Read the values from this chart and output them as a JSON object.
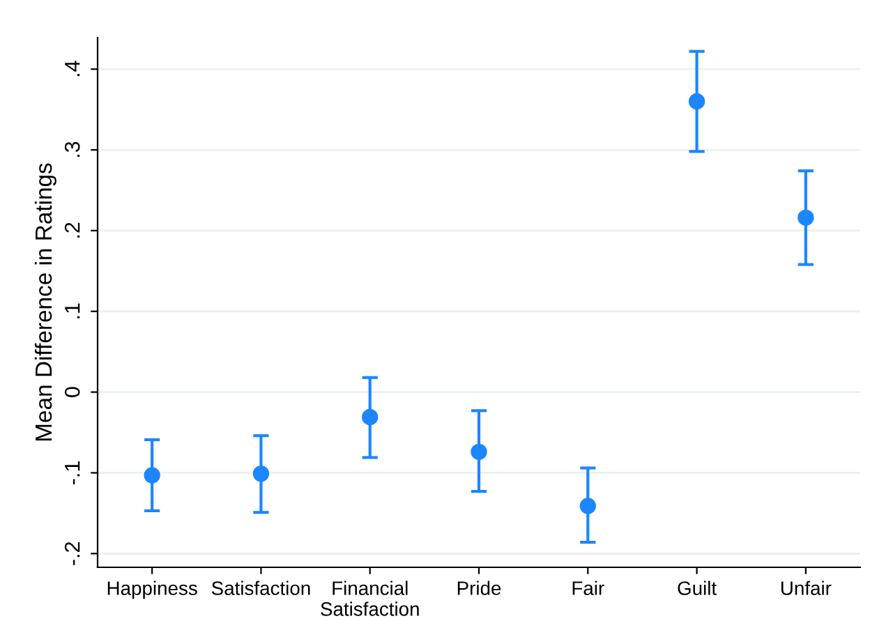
{
  "chart_data": {
    "type": "scatter",
    "ylabel": "Mean Difference in Ratings",
    "categories": [
      "Happiness",
      "Satisfaction",
      "Financial\nSatisfaction",
      "Pride",
      "Fair",
      "Guilt",
      "Unfair"
    ],
    "series": [
      {
        "color": "#1c86ff",
        "values": [
          -0.103,
          -0.101,
          -0.031,
          -0.074,
          -0.141,
          0.36,
          0.216
        ],
        "errors": [
          [
            -0.147,
            -0.059
          ],
          [
            -0.149,
            -0.054
          ],
          [
            -0.081,
            0.018
          ],
          [
            -0.123,
            -0.023
          ],
          [
            -0.186,
            -0.094
          ],
          [
            0.298,
            0.422
          ],
          [
            0.158,
            0.274
          ]
        ]
      }
    ],
    "ylim": [
      -0.217,
      0.439
    ],
    "yticks": [
      {
        "value": -0.2,
        "label": "-.2"
      },
      {
        "value": -0.1,
        "label": "-.1"
      },
      {
        "value": 0,
        "label": "0"
      },
      {
        "value": 0.1,
        "label": ".1"
      },
      {
        "value": 0.2,
        "label": ".2"
      },
      {
        "value": 0.3,
        "label": ".3"
      },
      {
        "value": 0.4,
        "label": ".4"
      }
    ],
    "grid": "y",
    "marker": "circle"
  }
}
